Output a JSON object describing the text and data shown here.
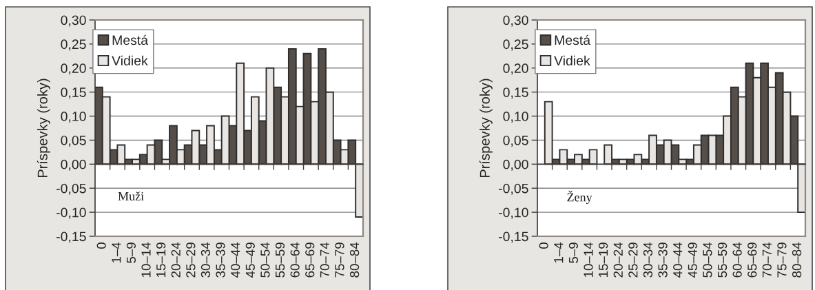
{
  "chart_data": [
    {
      "type": "bar",
      "categories": [
        "0",
        "1–4",
        "5–9",
        "10–14",
        "15–19",
        "20–24",
        "25–29",
        "30–34",
        "35–39",
        "40–44",
        "45–49",
        "50–54",
        "55–59",
        "60–64",
        "65–69",
        "70–74",
        "75–79",
        "80–84"
      ],
      "series": [
        {
          "name": "Mestá",
          "color": "#564e49",
          "values": [
            0.16,
            0.03,
            0.01,
            0.02,
            0.05,
            0.08,
            0.04,
            0.04,
            0.03,
            0.08,
            0.07,
            0.09,
            0.16,
            0.24,
            0.23,
            0.24,
            0.05,
            0.05
          ]
        },
        {
          "name": "Vidiek",
          "color": "#e8e5e2",
          "values": [
            0.14,
            0.04,
            0.01,
            0.04,
            0.01,
            0.03,
            0.07,
            0.08,
            0.1,
            0.21,
            0.14,
            0.2,
            0.14,
            0.12,
            0.13,
            0.15,
            0.03,
            -0.11
          ]
        }
      ],
      "ylabel": "Príspevky (roky)",
      "ylim": [
        -0.15,
        0.3
      ],
      "yticks": [
        {
          "value": -0.15,
          "label": "-0,15"
        },
        {
          "value": -0.1,
          "label": "-0,10"
        },
        {
          "value": -0.05,
          "label": "-0,05"
        },
        {
          "value": 0,
          "label": "0,00"
        },
        {
          "value": 0.05,
          "label": "0,05"
        },
        {
          "value": 0.1,
          "label": "0,10"
        },
        {
          "value": 0.15,
          "label": "0,15"
        },
        {
          "value": 0.2,
          "label": "0,20"
        },
        {
          "value": 0.25,
          "label": "0,25"
        },
        {
          "value": 0.3,
          "label": "0,30"
        }
      ],
      "grid": "y",
      "legend": "top left",
      "annotations": [
        "Muži"
      ]
    },
    {
      "type": "bar",
      "categories": [
        "0",
        "1–4",
        "5–9",
        "10–14",
        "15–19",
        "20–24",
        "25–29",
        "30–34",
        "35–39",
        "40–44",
        "45–49",
        "50–54",
        "55–59",
        "60–64",
        "65–69",
        "70–74",
        "75–79",
        "80–84"
      ],
      "series": [
        {
          "name": "Mestá",
          "color": "#564e49",
          "values": [
            null,
            0.01,
            0.01,
            0.01,
            null,
            0.01,
            0.01,
            0.01,
            0.04,
            0.04,
            0.01,
            0.06,
            0.06,
            0.16,
            0.21,
            0.21,
            0.19,
            0.1
          ]
        },
        {
          "name": "Vidiek",
          "color": "#e8e5e2",
          "values": [
            0.13,
            0.03,
            0.02,
            0.03,
            0.04,
            0.01,
            0.02,
            0.06,
            0.05,
            0.01,
            0.04,
            0.06,
            0.1,
            0.14,
            0.18,
            0.16,
            0.15,
            -0.1
          ]
        }
      ],
      "ylabel": "Príspevky (roky)",
      "ylim": [
        -0.15,
        0.3
      ],
      "yticks": [
        {
          "value": -0.15,
          "label": "-0,15"
        },
        {
          "value": -0.1,
          "label": "-0,10"
        },
        {
          "value": -0.05,
          "label": "-0,05"
        },
        {
          "value": 0,
          "label": "0,00"
        },
        {
          "value": 0.05,
          "label": "0,05"
        },
        {
          "value": 0.1,
          "label": "0,10"
        },
        {
          "value": 0.15,
          "label": "0,15"
        },
        {
          "value": 0.2,
          "label": "0,20"
        },
        {
          "value": 0.25,
          "label": "0,25"
        },
        {
          "value": 0.3,
          "label": "0,30"
        }
      ],
      "grid": "y",
      "legend": "top left",
      "annotations": [
        "Ženy"
      ]
    }
  ]
}
